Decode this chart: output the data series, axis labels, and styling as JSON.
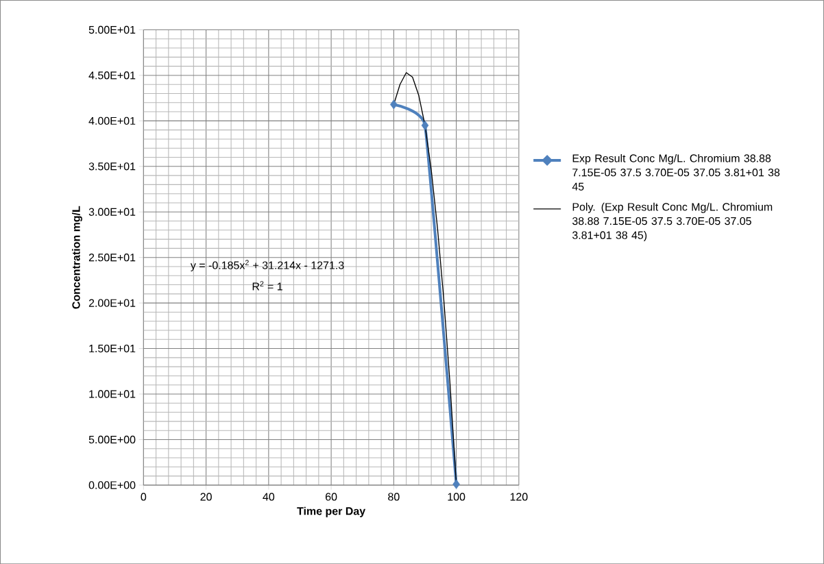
{
  "chart_data": {
    "type": "line",
    "xlabel": "Time per Day",
    "ylabel": "Concentration mg/L",
    "xlim": [
      0,
      120
    ],
    "xticks": [
      0,
      20,
      40,
      60,
      80,
      100,
      120
    ],
    "ylim": [
      0,
      50
    ],
    "yticks": [
      {
        "value": 0,
        "label": "0.00E+00"
      },
      {
        "value": 5,
        "label": "5.00E+00"
      },
      {
        "value": 10,
        "label": "1.00E+01"
      },
      {
        "value": 15,
        "label": "1.50E+01"
      },
      {
        "value": 20,
        "label": "2.00E+01"
      },
      {
        "value": 25,
        "label": "2.50E+01"
      },
      {
        "value": 30,
        "label": "3.00E+01"
      },
      {
        "value": 35,
        "label": "3.50E+01"
      },
      {
        "value": 40,
        "label": "4.00E+01"
      },
      {
        "value": 45,
        "label": "4.50E+01"
      },
      {
        "value": 50,
        "label": "5.00E+01"
      }
    ],
    "grid": true,
    "legend": "right",
    "marker": "diamond",
    "line_style": "solid",
    "annotations": [
      "y = -0.185x$^{2}$ + 31.214x - 1271.3",
      "R$^{2}$ = 1"
    ],
    "series": [
      {
        "name": "Exp Result Conc Mg/L. Chromium 38.88 7.15E-05 37.5 3.70E-05 37.05 3.81+01 38 45",
        "color": "#4f81bd",
        "x": [
          80,
          90,
          100
        ],
        "values": [
          41.8,
          39.5,
          0.1
        ]
      },
      {
        "name": "Poly. (Exp Result Conc Mg/L. Chromium 38.88 7.15E-05 37.5 3.70E-05 37.05 3.81+01 38 45)",
        "color": "#000000",
        "type": "line",
        "marker": "none",
        "x": [
          80,
          82,
          84,
          86,
          88,
          90,
          92,
          94,
          96,
          98,
          100
        ],
        "values": [
          41.8,
          44.0,
          45.3,
          44.8,
          42.8,
          39.5,
          34.6,
          28.2,
          20.4,
          11.1,
          0.1
        ]
      }
    ]
  }
}
